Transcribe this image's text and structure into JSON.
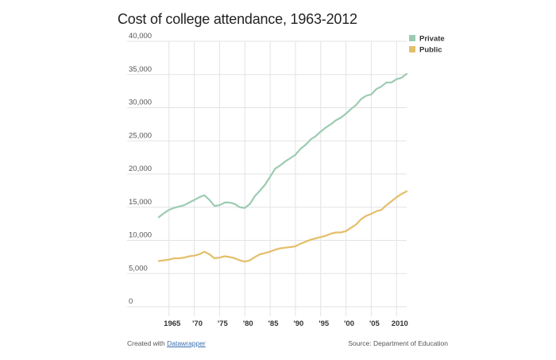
{
  "chart_data": {
    "type": "line",
    "title": "Cost of college attendance, 1963-2012",
    "xlabel": "",
    "ylabel": "",
    "ylim": [
      0,
      40000
    ],
    "xlim": [
      1963,
      2012
    ],
    "y_ticks": [
      0,
      5000,
      10000,
      15000,
      20000,
      25000,
      30000,
      35000,
      40000
    ],
    "y_tick_labels": [
      "0",
      "5,000",
      "10,000",
      "15,000",
      "20,000",
      "25,000",
      "30,000",
      "35,000",
      "40,000"
    ],
    "x_ticks": [
      1965,
      1970,
      1975,
      1980,
      1985,
      1990,
      1995,
      2000,
      2005,
      2010
    ],
    "x_tick_labels": [
      "1965",
      "'70",
      "'75",
      "'80",
      "'85",
      "'90",
      "'95",
      "'00",
      "'05",
      "2010"
    ],
    "grid": true,
    "legend_position": "top-right",
    "series": [
      {
        "name": "Private",
        "color": "#9ccbb1",
        "x": [
          1963,
          1964,
          1965,
          1966,
          1967,
          1968,
          1969,
          1970,
          1971,
          1972,
          1973,
          1974,
          1975,
          1976,
          1977,
          1978,
          1979,
          1980,
          1981,
          1982,
          1983,
          1984,
          1985,
          1986,
          1987,
          1988,
          1989,
          1990,
          1991,
          1992,
          1993,
          1994,
          1995,
          1996,
          1997,
          1998,
          1999,
          2000,
          2001,
          2002,
          2003,
          2004,
          2005,
          2006,
          2007,
          2008,
          2009,
          2010,
          2011,
          2012
        ],
        "values": [
          13500,
          14100,
          14600,
          14900,
          15100,
          15300,
          15700,
          16100,
          16500,
          16800,
          16100,
          15200,
          15300,
          15700,
          15700,
          15500,
          15000,
          14900,
          15500,
          16700,
          17500,
          18400,
          19600,
          20800,
          21300,
          21900,
          22400,
          22900,
          23800,
          24400,
          25200,
          25700,
          26400,
          27000,
          27500,
          28100,
          28500,
          29100,
          29800,
          30400,
          31300,
          31800,
          32000,
          32800,
          33200,
          33800,
          33800,
          34300,
          34500,
          35100
        ]
      },
      {
        "name": "Public",
        "color": "#e3bf6a",
        "x": [
          1963,
          1964,
          1965,
          1966,
          1967,
          1968,
          1969,
          1970,
          1971,
          1972,
          1973,
          1974,
          1975,
          1976,
          1977,
          1978,
          1979,
          1980,
          1981,
          1982,
          1983,
          1984,
          1985,
          1986,
          1987,
          1988,
          1989,
          1990,
          1991,
          1992,
          1993,
          1994,
          1995,
          1996,
          1997,
          1998,
          1999,
          2000,
          2001,
          2002,
          2003,
          2004,
          2005,
          2006,
          2007,
          2008,
          2009,
          2010,
          2011,
          2012
        ],
        "values": [
          6900,
          7000,
          7100,
          7300,
          7300,
          7400,
          7600,
          7700,
          7900,
          8300,
          7900,
          7300,
          7400,
          7600,
          7500,
          7300,
          7000,
          6800,
          7000,
          7500,
          7900,
          8100,
          8300,
          8600,
          8800,
          8900,
          9000,
          9100,
          9500,
          9800,
          10100,
          10300,
          10500,
          10700,
          11000,
          11200,
          11200,
          11400,
          11900,
          12400,
          13200,
          13700,
          14000,
          14400,
          14600,
          15300,
          15900,
          16500,
          17000,
          17400
        ]
      }
    ]
  },
  "footer": {
    "created_prefix": "Created with ",
    "created_link": "Datawrapper",
    "source": "Source: Department of Education"
  }
}
